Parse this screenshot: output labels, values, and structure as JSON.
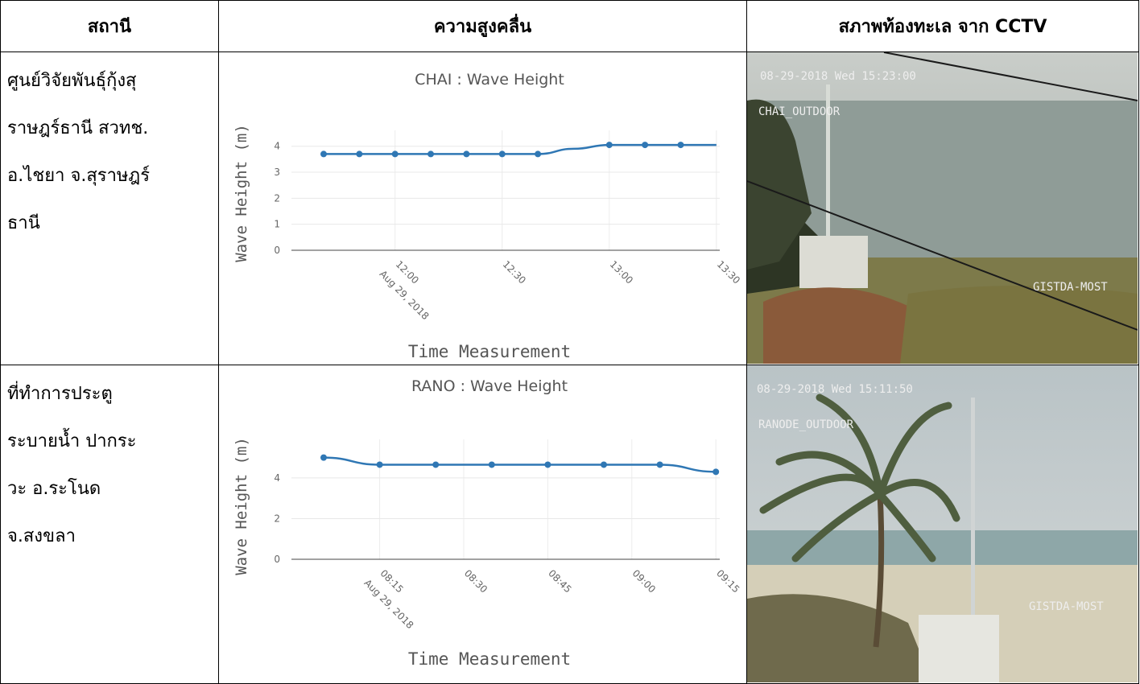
{
  "table": {
    "headers": [
      "สถานี",
      "ความสูงคลื่น",
      "สภาพท้องทะเล จาก CCTV"
    ],
    "rows": [
      {
        "station_lines": [
          "ศูนย์วิจัยพันธุ์กุ้งสุ",
          "ราษฎร์ธานี สวทช.",
          "อ.ไชยา จ.สุราษฎร์",
          "ธานี"
        ],
        "cam_timestamp": "08-29-2018 Wed 15:23:00",
        "cam_label": "CHAI_OUTDOOR",
        "cam_watermark": "GISTDA-MOST"
      },
      {
        "station_lines": [
          "ที่ทำการประตู",
          "ระบายน้ำ ปากระ",
          "วะ อ.ระโนด",
          "จ.สงขลา"
        ],
        "cam_timestamp": "08-29-2018 Wed 15:11:50",
        "cam_label": "RANODE_OUTDOOR",
        "cam_watermark": "GISTDA-MOST"
      }
    ]
  },
  "chart_data": [
    {
      "type": "line",
      "title": "CHAI : Wave Height",
      "xlabel": "Time Measurement",
      "ylabel": "Wave Height (m)",
      "x": [
        "11:40",
        "11:50",
        "12:00",
        "12:10",
        "12:20",
        "12:30",
        "12:40",
        "12:50",
        "13:00",
        "13:10",
        "13:20",
        "13:30"
      ],
      "y": [
        3.7,
        3.7,
        3.7,
        3.7,
        3.7,
        3.7,
        3.7,
        3.9,
        4.05,
        4.05,
        4.05,
        4.05
      ],
      "drawn_points": [
        0,
        1,
        2,
        3,
        4,
        5,
        6,
        8,
        9,
        10
      ],
      "x_ticks": [
        "12:00",
        "12:30",
        "13:00",
        "13:30"
      ],
      "x_tick_date": "Aug 29, 2018",
      "y_ticks": [
        0,
        1,
        2,
        3,
        4
      ],
      "ylim": [
        0,
        4.3
      ],
      "color": "#2f77b4",
      "grid": true
    },
    {
      "type": "line",
      "title": "RANO : Wave Height",
      "xlabel": "Time Measurement",
      "ylabel": "Wave Height (m)",
      "x": [
        "08:05",
        "08:15",
        "08:25",
        "08:35",
        "08:45",
        "08:55",
        "09:05",
        "09:15"
      ],
      "y": [
        5.0,
        4.65,
        4.65,
        4.65,
        4.65,
        4.65,
        4.65,
        4.3
      ],
      "x_ticks": [
        "08:15",
        "08:30",
        "08:45",
        "09:00",
        "09:15"
      ],
      "x_tick_date": "Aug 29, 2018",
      "y_ticks": [
        0,
        2,
        4
      ],
      "ylim": [
        0,
        5.5
      ],
      "color": "#2f77b4",
      "grid": true
    }
  ]
}
